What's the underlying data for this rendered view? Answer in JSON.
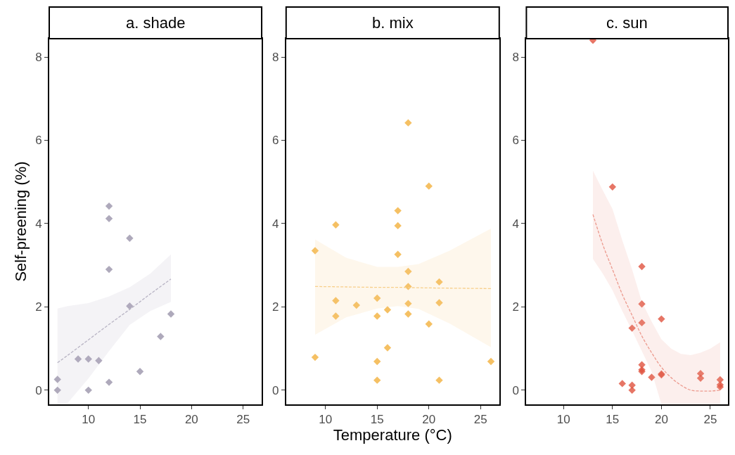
{
  "chart_data": [
    {
      "type": "scatter",
      "title": "a. shade",
      "ylabel": "Self-preening (%)",
      "xlim": [
        6.2,
        26.8
      ],
      "ylim": [
        -0.34,
        8.44
      ],
      "xticks": [
        10,
        15,
        20,
        25
      ],
      "yticks": [
        0,
        2,
        4,
        6,
        8
      ],
      "series": [
        {
          "marker": "diamond",
          "color": "#9a94aa",
          "x": [
            7,
            7,
            9,
            10,
            10,
            11,
            12,
            12,
            12,
            12,
            14,
            14,
            15,
            17,
            18
          ],
          "values": [
            0.26,
            0,
            0.75,
            0.75,
            0,
            0.71,
            4.42,
            4.12,
            2.9,
            0.19,
            3.65,
            2.02,
            0.45,
            1.29,
            1.83
          ]
        },
        {
          "type": "line",
          "line_style": "dashed",
          "color": "#b8b4c4",
          "x": [
            7,
            8,
            10,
            12,
            14,
            16,
            18
          ],
          "values": [
            0.66,
            0.84,
            1.21,
            1.58,
            1.94,
            2.31,
            2.67
          ],
          "lower": [
            -0.34,
            -0.3,
            0.28,
            0.94,
            1.57,
            1.9,
            2.12
          ],
          "upper": [
            1.96,
            2.02,
            2.09,
            2.25,
            2.47,
            2.8,
            3.26
          ]
        }
      ]
    },
    {
      "type": "scatter",
      "title": "b. mix",
      "xlabel": "Temperature (°C)",
      "xlim": [
        6.2,
        26.8
      ],
      "ylim": [
        -0.34,
        8.44
      ],
      "xticks": [
        10,
        15,
        20,
        25
      ],
      "yticks": [
        0,
        2,
        4,
        6,
        8
      ],
      "series": [
        {
          "marker": "diamond",
          "color": "#f2b03c",
          "x": [
            9,
            9,
            11,
            11,
            11,
            13,
            15,
            15,
            15,
            15,
            16,
            16,
            17,
            17,
            17,
            18,
            18,
            18,
            18,
            18,
            20,
            20,
            21,
            21,
            21,
            26
          ],
          "values": [
            3.35,
            0.79,
            3.97,
            2.15,
            1.78,
            2.04,
            2.21,
            1.78,
            0.69,
            0.24,
            1.93,
            1.02,
            4.31,
            3.95,
            3.26,
            6.42,
            2.85,
            2.49,
            2.08,
            1.83,
            4.9,
            1.59,
            2.6,
            2.1,
            0.24,
            0.69
          ]
        },
        {
          "type": "line",
          "line_style": "dashed",
          "color": "#f7cf8a",
          "x": [
            9,
            12,
            15,
            17,
            19,
            22,
            26
          ],
          "values": [
            2.49,
            2.48,
            2.47,
            2.47,
            2.46,
            2.45,
            2.44
          ],
          "lower": [
            1.33,
            1.75,
            1.96,
            2.02,
            1.95,
            1.6,
            1.03
          ],
          "upper": [
            3.62,
            3.18,
            2.96,
            2.96,
            3.03,
            3.35,
            3.88
          ]
        }
      ]
    },
    {
      "type": "scatter",
      "title": "c. sun",
      "xlim": [
        6.2,
        26.8
      ],
      "ylim": [
        -0.34,
        8.44
      ],
      "xticks": [
        10,
        15,
        20,
        25
      ],
      "yticks": [
        0,
        2,
        4,
        6,
        8
      ],
      "series": [
        {
          "marker": "diamond",
          "color": "#e0533e",
          "x": [
            13,
            15,
            16,
            17,
            17,
            17,
            18,
            18,
            18,
            18,
            18,
            18,
            19,
            20,
            20,
            20,
            24,
            24,
            26,
            26,
            26
          ],
          "values": [
            8.4,
            4.88,
            0.16,
            1.49,
            0.12,
            0,
            2.97,
            2.07,
            1.62,
            0.61,
            0.49,
            0.45,
            0.31,
            1.71,
            0.39,
            0.37,
            0.4,
            0.29,
            0.25,
            0.13,
            0.08
          ]
        },
        {
          "type": "line",
          "line_style": "dashed",
          "color": "#ec9a8e",
          "x": [
            13,
            14,
            15,
            16,
            17,
            18,
            19,
            20,
            21,
            22,
            23,
            24,
            25,
            26
          ],
          "values": [
            4.22,
            3.5,
            2.9,
            2.3,
            1.8,
            1.3,
            0.9,
            0.55,
            0.3,
            0.12,
            0.0,
            -0.02,
            -0.02,
            0.0
          ],
          "lower": [
            3.15,
            2.8,
            2.4,
            1.9,
            1.43,
            0.94,
            0.45,
            -0.34,
            -0.34,
            -0.34,
            -0.34,
            -0.34,
            -0.34,
            -0.34
          ],
          "upper": [
            5.27,
            4.8,
            4.35,
            3.6,
            2.9,
            2.12,
            1.65,
            1.22,
            1.0,
            0.87,
            0.84,
            0.9,
            1.0,
            1.15
          ]
        }
      ]
    }
  ]
}
